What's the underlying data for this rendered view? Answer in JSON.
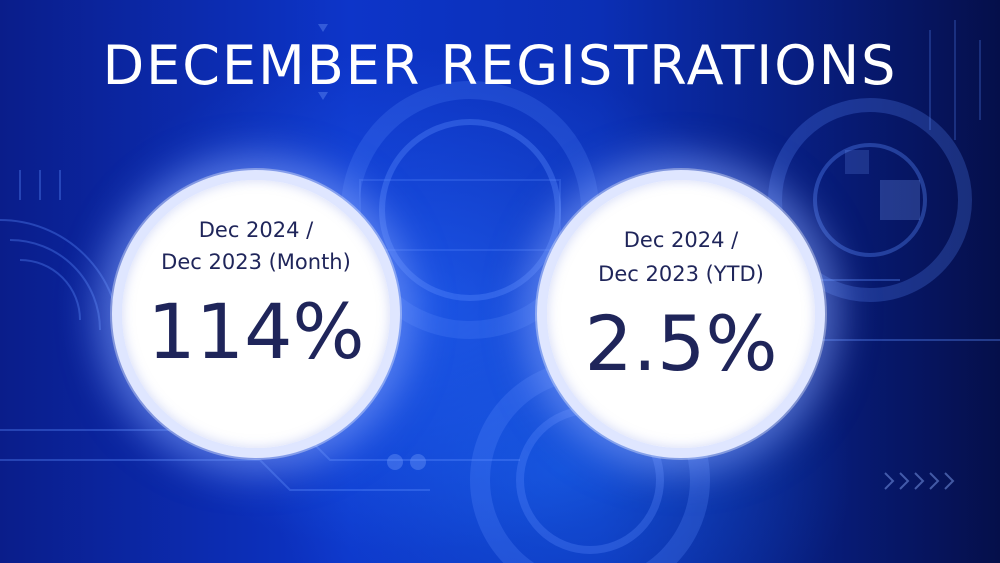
{
  "title": "DECEMBER REGISTRATIONS",
  "stats": [
    {
      "label_line1": "Dec 2024 /",
      "label_line2": "Dec 2023 (Month)",
      "value": "114%"
    },
    {
      "label_line1": "Dec 2024 /",
      "label_line2": "Dec 2023 (YTD)",
      "value": "2.5%"
    }
  ],
  "colors": {
    "background": "#0b2fb5",
    "circle_fill": "#ffffff",
    "text_dark": "#1f255a",
    "title": "#ffffff"
  }
}
